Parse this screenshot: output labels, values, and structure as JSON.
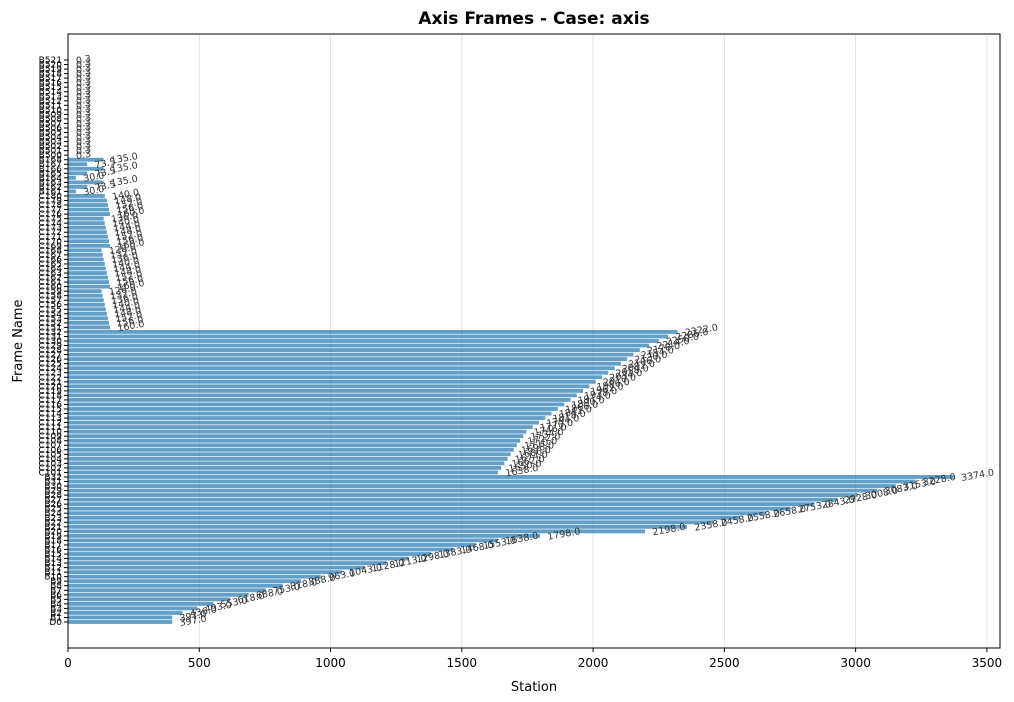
{
  "chart_data": {
    "type": "bar",
    "orientation": "horizontal",
    "title": "Axis Frames - Case: axis",
    "xlabel": "Station",
    "ylabel": "Frame Name",
    "xlim": [
      0,
      3550
    ],
    "xticks": [
      0,
      500,
      1000,
      1500,
      2000,
      2500,
      3000,
      3500
    ],
    "grid": "x",
    "bar_color": "#1f77b4",
    "categories": [
      "D0",
      "B1",
      "B2",
      "B3",
      "B4",
      "B5",
      "B6",
      "B7",
      "B8",
      "B9",
      "B10",
      "B11",
      "B12",
      "B13",
      "B14",
      "B15",
      "B16",
      "B17",
      "B18",
      "B19",
      "B20",
      "B21",
      "B22",
      "B23",
      "B24",
      "B25",
      "B26",
      "B27",
      "B28",
      "B29",
      "B30",
      "B31",
      "B32",
      "C101",
      "C102",
      "C103",
      "C104",
      "C105",
      "C106",
      "C107",
      "C108",
      "C109",
      "C110",
      "C111",
      "C112",
      "C113",
      "C114",
      "C115",
      "C116",
      "C117",
      "C118",
      "C119",
      "C120",
      "C121",
      "C122",
      "C123",
      "C124",
      "C125",
      "C126",
      "C127",
      "C128",
      "C129",
      "C130",
      "C131",
      "C132",
      "C151",
      "C152",
      "C153",
      "C154",
      "C155",
      "C156",
      "C157",
      "C158",
      "C159",
      "C160",
      "C161",
      "C162",
      "C163",
      "C164",
      "C165",
      "C166",
      "C167",
      "C168",
      "C169",
      "C170",
      "C171",
      "C172",
      "C173",
      "C174",
      "C175",
      "C176",
      "C177",
      "C178",
      "C179",
      "C180",
      "B161",
      "B162",
      "B163",
      "B164",
      "B165",
      "B166",
      "B167",
      "B168",
      "B500",
      "B501",
      "B502",
      "B503",
      "B504",
      "B505",
      "B506",
      "B507",
      "B508",
      "B509",
      "B510",
      "B511",
      "B512",
      "B513",
      "B514",
      "B515",
      "B516",
      "B517",
      "B518",
      "B519",
      "B520",
      "B521"
    ],
    "values": [
      397.0,
      397.0,
      436.0,
      493.0,
      553.0,
      618.0,
      688.0,
      753.0,
      818.0,
      888.0,
      963.0,
      1043.0,
      1128.0,
      1213.0,
      1298.0,
      1383.0,
      1468.0,
      1553.0,
      1638.0,
      1798.0,
      2198.0,
      2358.0,
      2458.0,
      2558.0,
      2658.0,
      2753.0,
      2843.0,
      2928.0,
      3008.0,
      3083.0,
      3153.0,
      3228.0,
      3374.0,
      1638.0,
      1650.0,
      1662.0,
      1674.0,
      1686.0,
      1698.0,
      1710.0,
      1722.0,
      1734.0,
      1746.0,
      1770.0,
      1794.0,
      1818.0,
      1842.0,
      1866.0,
      1890.0,
      1914.0,
      1938.0,
      1962.0,
      1986.0,
      2010.0,
      2034.0,
      2058.0,
      2082.0,
      2106.0,
      2130.0,
      2154.0,
      2178.0,
      2214.0,
      2250.0,
      2286.0,
      2322.0,
      160.0,
      156.0,
      152.0,
      148.0,
      144.0,
      140.0,
      136.0,
      132.0,
      128.0,
      160.0,
      156.0,
      152.0,
      148.0,
      144.0,
      140.0,
      136.0,
      132.0,
      128.0,
      160.0,
      156.0,
      152.0,
      148.0,
      144.0,
      140.0,
      136.0,
      160.0,
      156.0,
      152.0,
      148.0,
      140.0,
      30.0,
      73.5,
      135.0,
      30.0,
      73.5,
      135.0,
      73.5,
      135.0,
      0.3,
      0.3,
      0.3,
      0.3,
      0.3,
      0.3,
      0.3,
      0.3,
      0.3,
      0.3,
      0.3,
      0.3,
      0.3,
      0.3,
      0.3,
      0.3,
      0.3,
      0.3,
      0.3,
      0.3,
      0.3,
      0.3
    ],
    "value_label_format": "one-decimal"
  }
}
